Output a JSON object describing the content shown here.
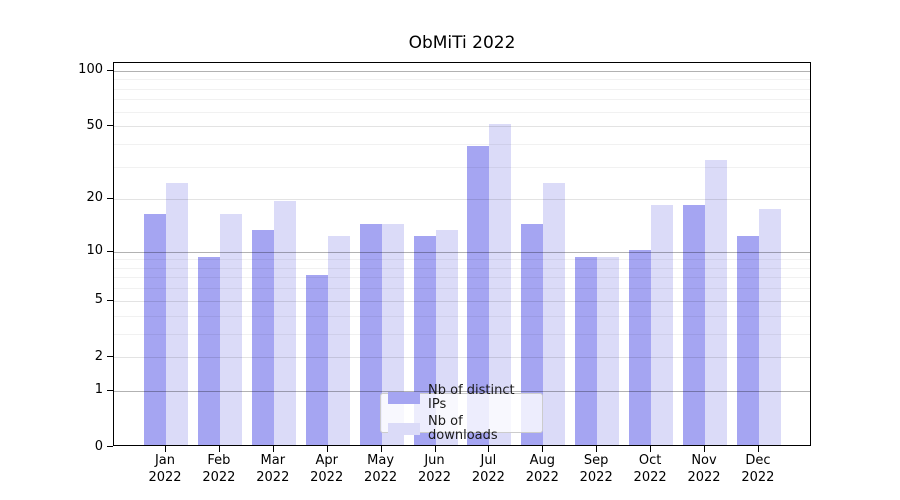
{
  "title": "ObMiTi 2022",
  "colors": {
    "ips_bar": "#a5a5f2",
    "downloads_bar": "#dbdbf8",
    "axis": "#000000",
    "legend_border": "#cccccc"
  },
  "legend": {
    "items": [
      {
        "label": "Nb of distinct IPs",
        "color": "#a5a5f2"
      },
      {
        "label": "Nb of downloads",
        "color": "#dbdbf8"
      }
    ]
  },
  "y_axis": {
    "tick_labels": [
      "0",
      "1",
      "2",
      "5",
      "10",
      "20",
      "50",
      "100"
    ]
  },
  "x_axis": {
    "year_label": "2022"
  },
  "chart_data": {
    "type": "bar",
    "title": "ObMiTi 2022",
    "categories": [
      "Jan 2022",
      "Feb 2022",
      "Mar 2022",
      "Apr 2022",
      "May 2022",
      "Jun 2022",
      "Jul 2022",
      "Aug 2022",
      "Sep 2022",
      "Oct 2022",
      "Nov 2022",
      "Dec 2022"
    ],
    "months": [
      "Jan",
      "Feb",
      "Mar",
      "Apr",
      "May",
      "Jun",
      "Jul",
      "Aug",
      "Sep",
      "Oct",
      "Nov",
      "Dec"
    ],
    "series": [
      {
        "name": "Nb of distinct IPs",
        "color": "#a5a5f2",
        "values": [
          16,
          9,
          13,
          7,
          14,
          12,
          38,
          14,
          9,
          10,
          18,
          12
        ]
      },
      {
        "name": "Nb of downloads",
        "color": "#dbdbf8",
        "values": [
          24,
          16,
          19,
          12,
          14,
          13,
          50,
          24,
          9,
          18,
          32,
          17
        ]
      }
    ],
    "yscale": "log1p",
    "ylim": [
      0,
      110
    ],
    "yticks": [
      0,
      1,
      2,
      5,
      10,
      20,
      50,
      100
    ],
    "yticks_minor": [
      3,
      4,
      6,
      7,
      8,
      9,
      30,
      40,
      60,
      70,
      80,
      90
    ],
    "grid": true,
    "legend_position": "lower center"
  }
}
